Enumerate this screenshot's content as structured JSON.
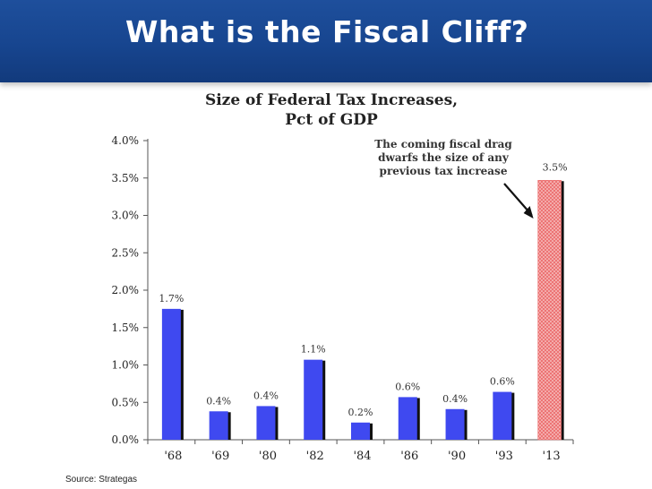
{
  "slide": {
    "title": "What is the Fiscal Cliff?",
    "source": "Source: Strategas"
  },
  "chart_data": {
    "type": "bar",
    "title_lines": [
      "Size of Federal Tax Increases,",
      "Pct of GDP"
    ],
    "categories": [
      "'68",
      "'69",
      "'80",
      "'82",
      "'84",
      "'86",
      "'90",
      "'93",
      "'13"
    ],
    "values": [
      1.75,
      0.38,
      0.45,
      1.07,
      0.23,
      0.57,
      0.41,
      0.64,
      3.47
    ],
    "data_labels": [
      "1.7%",
      "0.4%",
      "0.4%",
      "1.1%",
      "0.2%",
      "0.6%",
      "0.4%",
      "0.6%",
      "3.5%"
    ],
    "ylim": [
      0,
      4
    ],
    "yticks": [
      0,
      0.5,
      1.0,
      1.5,
      2.0,
      2.5,
      3.0,
      3.5,
      4.0
    ],
    "ytick_labels": [
      "0.0%",
      "0.5%",
      "1.0%",
      "1.5%",
      "2.0%",
      "2.5%",
      "3.0%",
      "3.5%",
      "4.0%"
    ],
    "annotation_lines": [
      "The coming fiscal drag",
      "dwarfs the size of any",
      "previous tax increase"
    ],
    "colors": {
      "bar": "#3f49f0",
      "highlight_bar": "#ea6b6b",
      "shadow": "#111111"
    }
  }
}
